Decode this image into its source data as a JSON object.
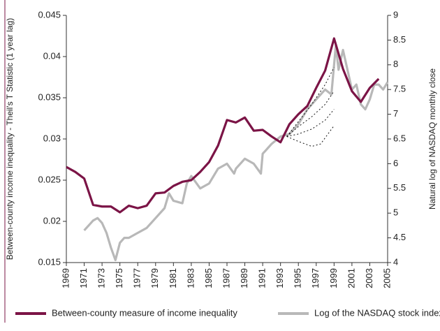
{
  "chart_data": {
    "type": "line",
    "y_label": "Between-county income inequality - Theil's T Statistic (1 year lag)",
    "y2_label": "Natural log of NASDAQ monthly close",
    "xlim": [
      1969,
      2005
    ],
    "xticks": [
      1969,
      1971,
      1973,
      1975,
      1977,
      1979,
      1981,
      1983,
      1985,
      1987,
      1989,
      1991,
      1993,
      1995,
      1997,
      1999,
      2001,
      2003,
      2005
    ],
    "ylim": [
      0.015,
      0.045
    ],
    "yticks": [
      0.015,
      0.02,
      0.025,
      0.03,
      0.035,
      0.04,
      0.045
    ],
    "y2lim": [
      4,
      9
    ],
    "y2ticks": [
      4,
      4.5,
      5,
      5.5,
      6,
      6.5,
      7,
      7.5,
      8,
      8.5,
      9
    ],
    "legend": "bottom",
    "series": [
      {
        "name": "Between-county measure of income inequality",
        "color": "#7b1446",
        "axis": "y",
        "x": [
          1969,
          1970,
          1971,
          1972,
          1973,
          1974,
          1975,
          1976,
          1977,
          1978,
          1979,
          1980,
          1981,
          1982,
          1983,
          1984,
          1985,
          1986,
          1987,
          1988,
          1989,
          1990,
          1991,
          1992,
          1993,
          1994,
          1995,
          1996,
          1997,
          1998,
          1999,
          2000,
          2001,
          2002,
          2003,
          2004
        ],
        "values": [
          0.0266,
          0.026,
          0.0252,
          0.022,
          0.0218,
          0.0218,
          0.0211,
          0.0219,
          0.0216,
          0.0219,
          0.0234,
          0.0235,
          0.0243,
          0.0248,
          0.025,
          0.026,
          0.0272,
          0.0292,
          0.0323,
          0.032,
          0.0326,
          0.031,
          0.0311,
          0.0303,
          0.0296,
          0.0318,
          0.033,
          0.034,
          0.0362,
          0.0383,
          0.0422,
          0.0385,
          0.0358,
          0.0345,
          0.0362,
          0.0373
        ]
      },
      {
        "name": "Log of the NASDAQ stock index",
        "color": "#b8b8b8",
        "axis": "y2",
        "x": [
          1971,
          1971.5,
          1972,
          1972.5,
          1973,
          1973.5,
          1974,
          1974.5,
          1975,
          1975.5,
          1976,
          1977,
          1978,
          1979,
          1980,
          1980.5,
          1981,
          1982,
          1982.5,
          1983,
          1984,
          1985,
          1986,
          1987,
          1987.8,
          1988,
          1989,
          1990,
          1990.8,
          1991,
          1992,
          1993,
          1994,
          1995,
          1996,
          1997,
          1998,
          1998.7,
          1999,
          1999.2,
          1999.5,
          2000,
          2000.5,
          2001,
          2001.5,
          2002,
          2002.5,
          2003,
          2003.5,
          2004,
          2004.5,
          2005
        ],
        "values": [
          4.65,
          4.75,
          4.85,
          4.9,
          4.8,
          4.6,
          4.3,
          4.05,
          4.4,
          4.5,
          4.5,
          4.6,
          4.7,
          4.9,
          5.1,
          5.4,
          5.25,
          5.2,
          5.6,
          5.75,
          5.5,
          5.6,
          5.9,
          6.0,
          5.8,
          5.9,
          6.1,
          6.0,
          5.8,
          6.2,
          6.4,
          6.55,
          6.6,
          6.8,
          7.1,
          7.3,
          7.5,
          7.4,
          8.0,
          8.4,
          7.9,
          8.3,
          7.9,
          7.5,
          7.6,
          7.2,
          7.1,
          7.3,
          7.6,
          7.6,
          7.5,
          7.65
        ]
      }
    ],
    "dotted_lines": [
      {
        "x": [
          1993.7,
          1995,
          1996.5,
          1998,
          1999
        ],
        "values": [
          6.55,
          6.85,
          7.2,
          7.6,
          7.95
        ]
      },
      {
        "x": [
          1993.7,
          1995,
          1996.5,
          1998,
          1999
        ],
        "values": [
          6.55,
          6.75,
          6.95,
          7.2,
          7.47
        ]
      },
      {
        "x": [
          1993.7,
          1995,
          1996.5,
          1998,
          1999
        ],
        "values": [
          6.55,
          6.6,
          6.7,
          6.88,
          7.1
        ]
      },
      {
        "x": [
          1993.7,
          1995,
          1996.5,
          1997.5,
          1999
        ],
        "values": [
          6.55,
          6.45,
          6.35,
          6.4,
          6.77
        ]
      }
    ]
  }
}
